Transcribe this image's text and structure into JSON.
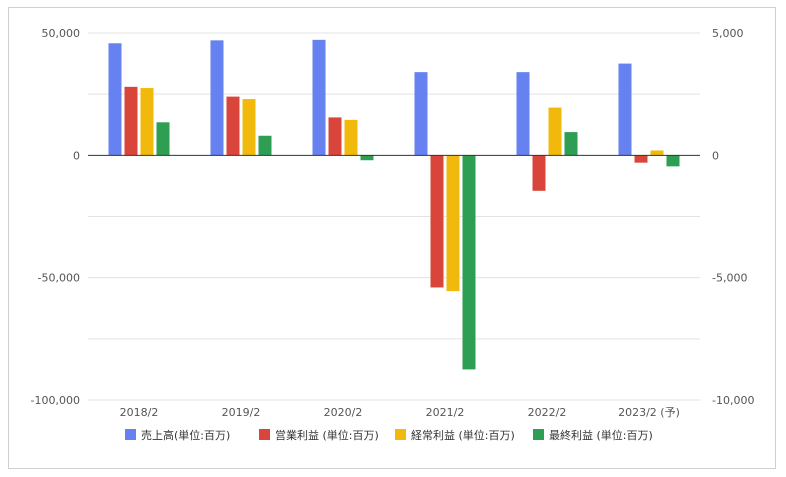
{
  "chart_data": {
    "type": "bar",
    "title": "",
    "categories": [
      "2018/2",
      "2019/2",
      "2020/2",
      "2021/2",
      "2022/2",
      "2023/2 (予)"
    ],
    "series": [
      {
        "name": "売上高(単位:百万)",
        "axis": "left",
        "color": "#6681f0",
        "values": [
          45800,
          47000,
          47200,
          34000,
          34000,
          37500
        ]
      },
      {
        "name": "営業利益 (単位:百万)",
        "axis": "right",
        "color": "#d9453b",
        "values": [
          2800,
          2400,
          1550,
          -5400,
          -1450,
          -300
        ]
      },
      {
        "name": "経常利益 (単位:百万)",
        "axis": "right",
        "color": "#f1b90c",
        "values": [
          2750,
          2300,
          1450,
          -5550,
          1950,
          200
        ]
      },
      {
        "name": "最終利益 (単位:百万)",
        "axis": "right",
        "color": "#2e9e52",
        "values": [
          1350,
          800,
          -200,
          -8750,
          950,
          -450
        ]
      }
    ],
    "left_axis": {
      "ylim": [
        -100000,
        50000
      ],
      "ticks": [
        50000,
        0,
        -50000,
        -100000
      ],
      "tick_labels": [
        "50,000",
        "0",
        "-50,000",
        "-100,000"
      ]
    },
    "right_axis": {
      "ylim": [
        -10000,
        5000
      ],
      "ticks": [
        5000,
        0,
        -5000,
        -10000
      ],
      "tick_labels": [
        "5,000",
        "0",
        "-5,000",
        "-10,000"
      ]
    },
    "grid": true,
    "legend_position": "bottom",
    "xlabel": "",
    "ylabel": ""
  }
}
